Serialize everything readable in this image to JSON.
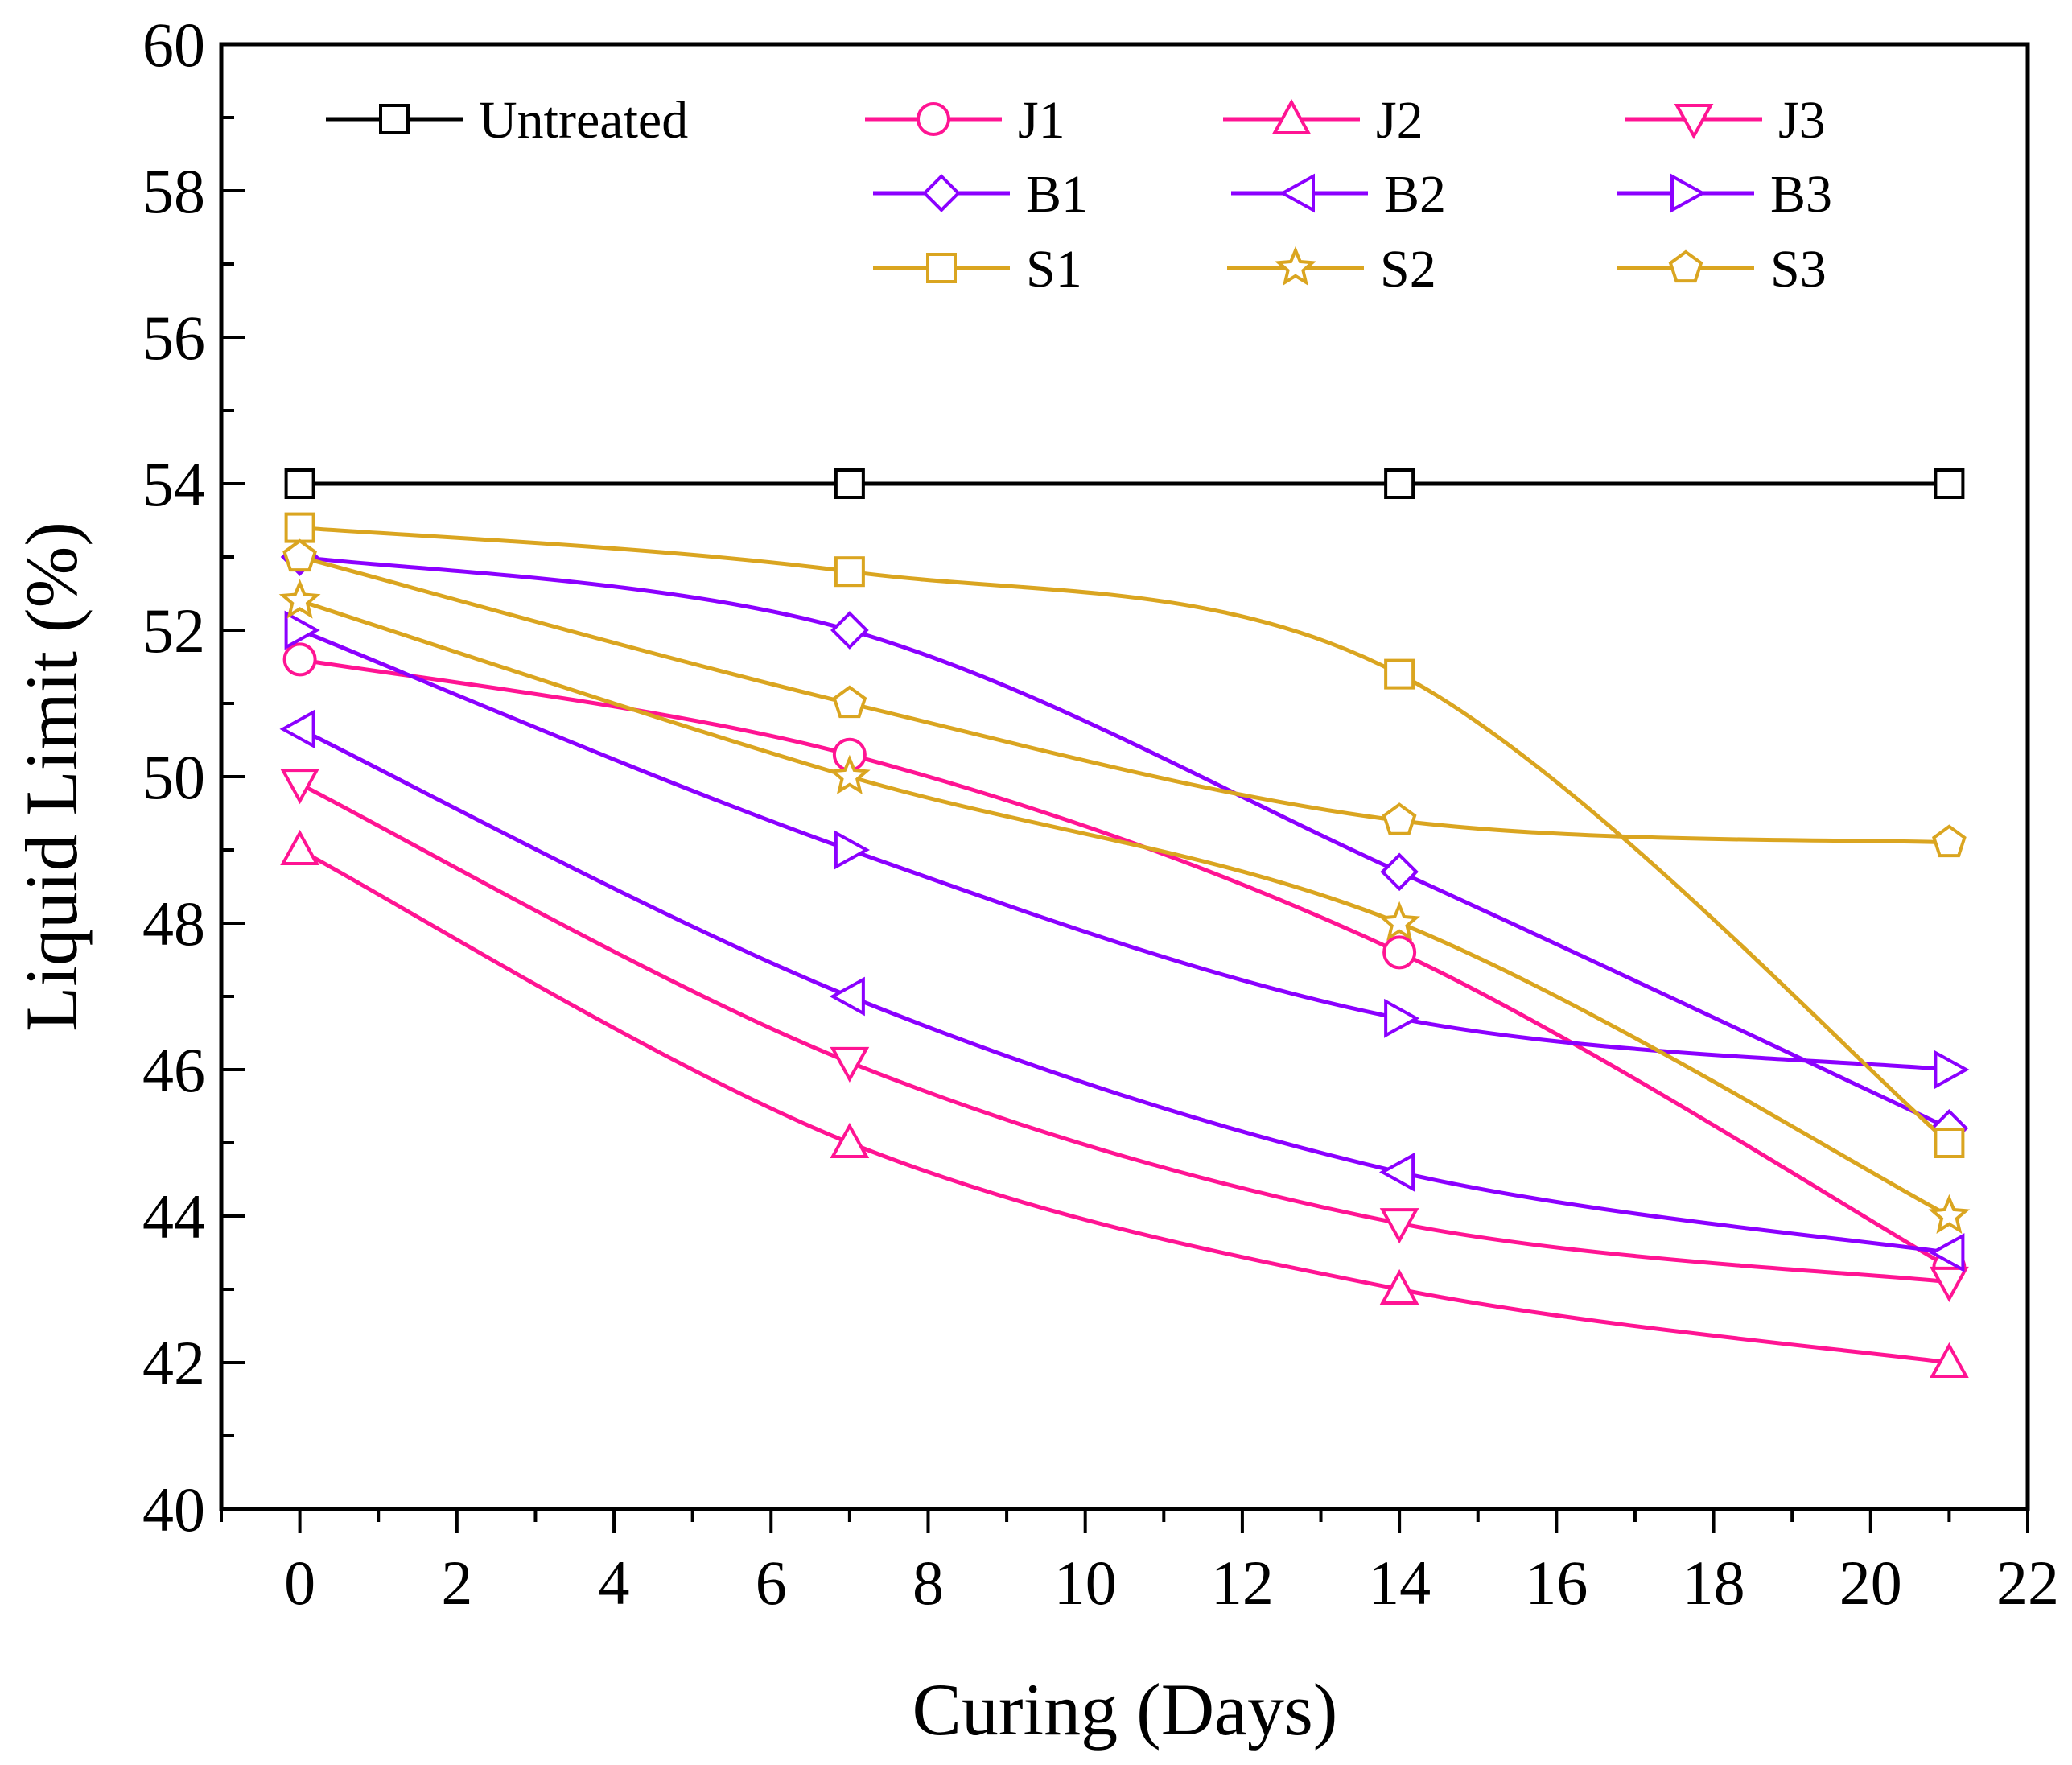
{
  "chart_data": {
    "type": "line",
    "title": "",
    "xlabel": "Curing (Days)",
    "ylabel": "Liquid Limit (%)",
    "xlim": [
      -1,
      22
    ],
    "ylim": [
      40,
      60
    ],
    "xticks": [
      0,
      2,
      4,
      6,
      8,
      10,
      12,
      14,
      16,
      18,
      20,
      22
    ],
    "xtick_labels": [
      "0",
      "2",
      "4",
      "6",
      "8",
      "10",
      "12",
      "14",
      "16",
      "18",
      "20",
      "22"
    ],
    "yticks": [
      40,
      42,
      44,
      46,
      48,
      50,
      52,
      54,
      56,
      58,
      60
    ],
    "ytick_labels": [
      "40",
      "42",
      "44",
      "46",
      "48",
      "50",
      "52",
      "54",
      "56",
      "58",
      "60"
    ],
    "x": [
      0,
      7,
      14,
      21
    ],
    "legend_position": "top",
    "series": [
      {
        "name": "Untreated",
        "color": "#000000",
        "marker": "square",
        "values": [
          54,
          54,
          54,
          54
        ]
      },
      {
        "name": "J1",
        "color": "#ff1493",
        "marker": "circle",
        "values": [
          51.6,
          50.3,
          47.6,
          43.3
        ]
      },
      {
        "name": "J2",
        "color": "#ff1493",
        "marker": "triangle-up",
        "values": [
          49.0,
          45.0,
          43.0,
          42.0
        ]
      },
      {
        "name": "J3",
        "color": "#ff1493",
        "marker": "triangle-down",
        "values": [
          49.9,
          46.1,
          43.9,
          43.1
        ]
      },
      {
        "name": "B1",
        "color": "#8b00ff",
        "marker": "diamond",
        "values": [
          53.0,
          52.0,
          48.7,
          45.2
        ]
      },
      {
        "name": "B2",
        "color": "#8b00ff",
        "marker": "triangle-left",
        "values": [
          50.65,
          47.0,
          44.6,
          43.5
        ]
      },
      {
        "name": "B3",
        "color": "#8b00ff",
        "marker": "triangle-right",
        "values": [
          52.0,
          49.0,
          46.7,
          46.0
        ]
      },
      {
        "name": "S1",
        "color": "#daa520",
        "marker": "square",
        "values": [
          53.4,
          52.8,
          51.4,
          45.0
        ]
      },
      {
        "name": "S2",
        "color": "#daa520",
        "marker": "star",
        "values": [
          52.4,
          50.0,
          48.0,
          44.0
        ]
      },
      {
        "name": "S3",
        "color": "#daa520",
        "marker": "pentagon",
        "values": [
          53.0,
          51.0,
          49.4,
          49.1
        ]
      }
    ]
  }
}
